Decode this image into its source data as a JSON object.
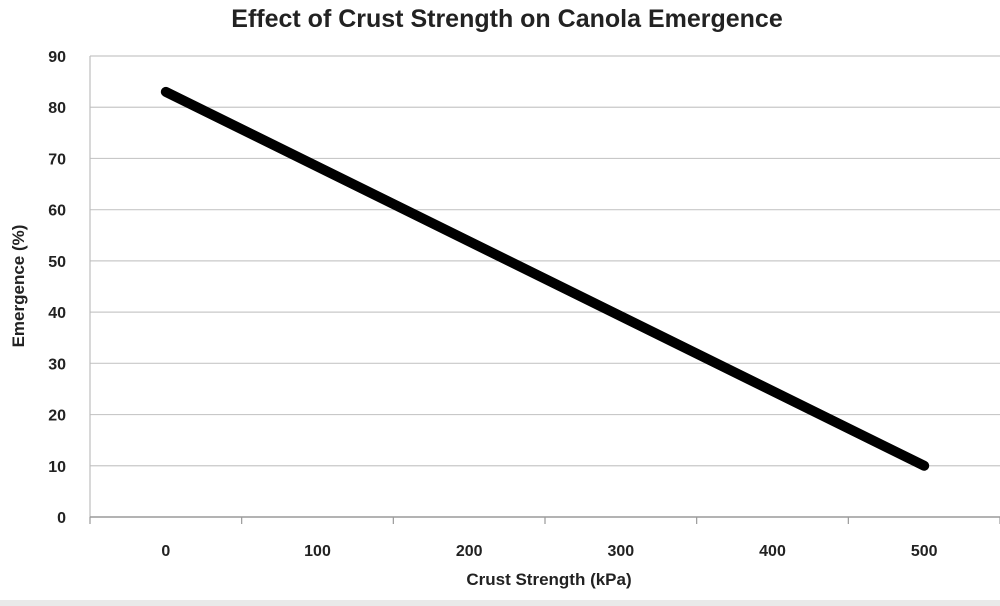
{
  "chart_data": {
    "type": "line",
    "title": "Effect of Crust Strength on Canola Emergence",
    "xlabel": "Crust Strength (kPa)",
    "ylabel": "Emergence (%)",
    "xlim": [
      -50,
      550
    ],
    "ylim": [
      0,
      90
    ],
    "x_ticks": [
      0,
      100,
      200,
      300,
      400,
      500
    ],
    "y_ticks": [
      0,
      10,
      20,
      30,
      40,
      50,
      60,
      70,
      80,
      90
    ],
    "grid": true,
    "legend": "none",
    "series": [
      {
        "x": [
          0,
          500
        ],
        "y": [
          83,
          10
        ],
        "color": "#000000"
      }
    ]
  }
}
